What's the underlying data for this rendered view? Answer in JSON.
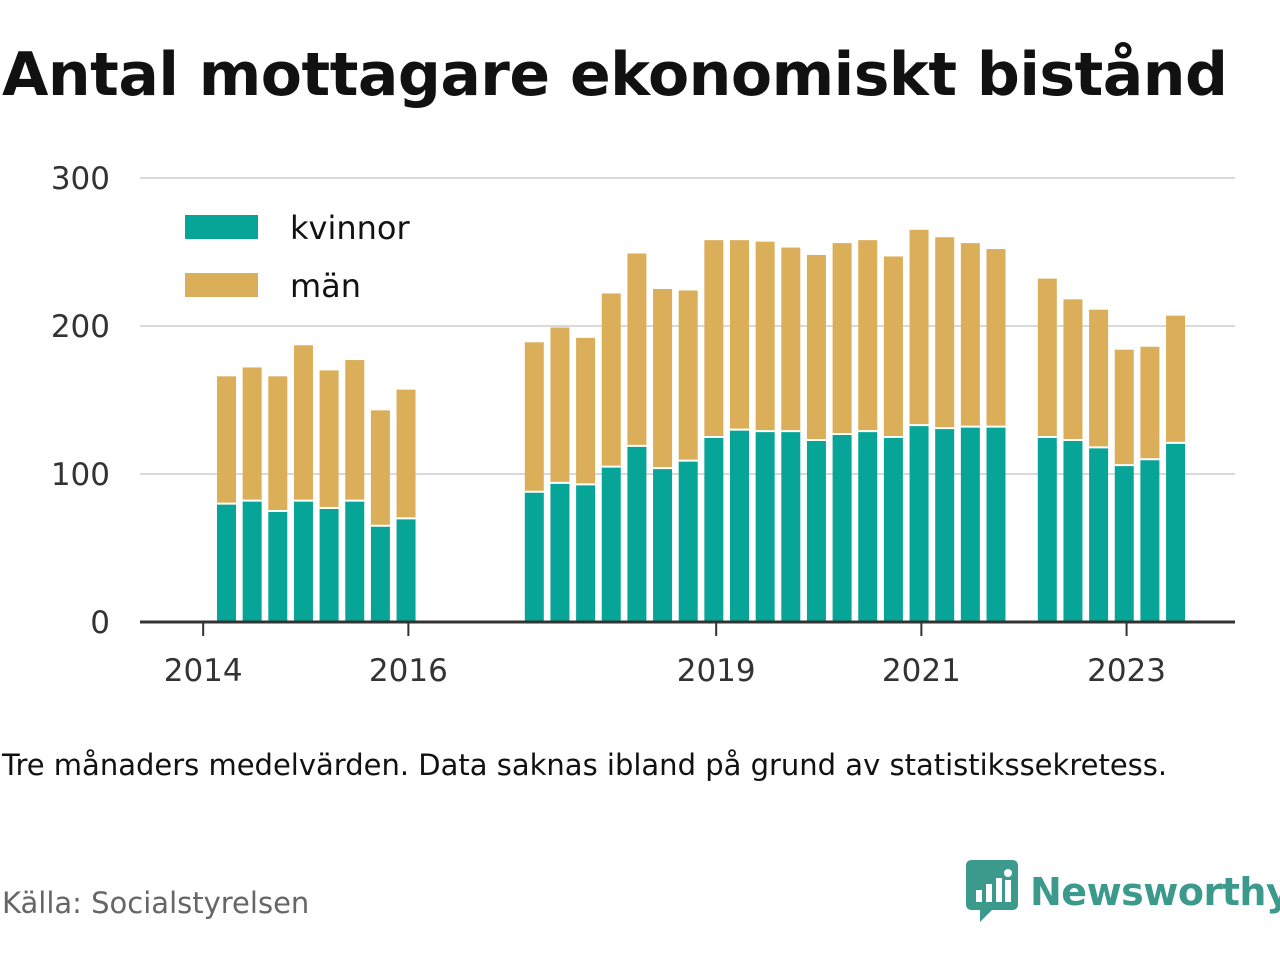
{
  "title": "Antal mottagare ekonomiskt bistånd",
  "note": "Tre månaders medelvärden. Data saknas ibland på grund av statistikssekretess.",
  "source": "Källa: Socialstyrelsen",
  "brand": "Newsworthy",
  "colors": {
    "kvinnor": "#07a597",
    "man": "#dbae59",
    "grid": "#d9d9d9",
    "axis": "#333333",
    "brand": "#3c9a8c"
  },
  "chart_data": {
    "type": "bar",
    "stacked": true,
    "ylim": [
      0,
      300
    ],
    "yticks": [
      0,
      100,
      200,
      300
    ],
    "xtick_labels": [
      "2014",
      "2016",
      "2019",
      "2021",
      "2023"
    ],
    "legend": {
      "placement": "top-left",
      "entries": [
        "kvinnor",
        "män"
      ]
    },
    "grid": true,
    "series": [
      {
        "name": "kvinnor",
        "values": [
          80,
          82,
          75,
          82,
          77,
          82,
          65,
          70,
          null,
          null,
          null,
          null,
          88,
          94,
          93,
          105,
          119,
          104,
          109,
          125,
          130,
          129,
          129,
          123,
          127,
          129,
          125,
          133,
          131,
          132,
          132,
          null,
          125,
          123,
          118,
          106,
          110,
          121
        ]
      },
      {
        "name": "män",
        "values": [
          86,
          90,
          91,
          105,
          93,
          95,
          78,
          87,
          null,
          null,
          null,
          null,
          101,
          105,
          99,
          117,
          130,
          121,
          115,
          133,
          128,
          128,
          124,
          125,
          129,
          129,
          122,
          132,
          129,
          124,
          120,
          null,
          107,
          95,
          93,
          78,
          76,
          86
        ]
      }
    ]
  }
}
